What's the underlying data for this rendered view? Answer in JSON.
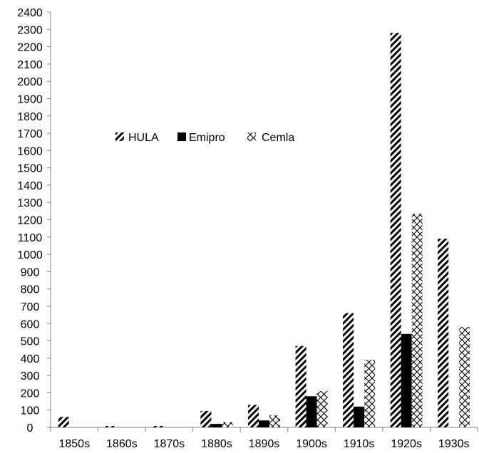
{
  "chart_data": {
    "type": "bar",
    "title": "",
    "xlabel": "",
    "ylabel": "",
    "categories": [
      "1850s",
      "1860s",
      "1870s",
      "1880s",
      "1890s",
      "1900s",
      "1910s",
      "1920s",
      "1930s"
    ],
    "series": [
      {
        "name": "HULA",
        "pattern": "diagonal-stripes",
        "color": "#000000",
        "values": [
          60,
          8,
          8,
          95,
          130,
          470,
          660,
          2280,
          1090
        ]
      },
      {
        "name": "Emipro",
        "pattern": "solid",
        "color": "#000000",
        "values": [
          0,
          0,
          0,
          20,
          40,
          180,
          120,
          540,
          0
        ]
      },
      {
        "name": "Cemla",
        "pattern": "crosshatch",
        "color": "#000000",
        "values": [
          0,
          0,
          0,
          30,
          70,
          210,
          390,
          1235,
          580
        ]
      }
    ],
    "ylim": [
      0,
      2400
    ],
    "ytick_step": 100,
    "grid": false,
    "legend_position": "upper-left-inside"
  }
}
